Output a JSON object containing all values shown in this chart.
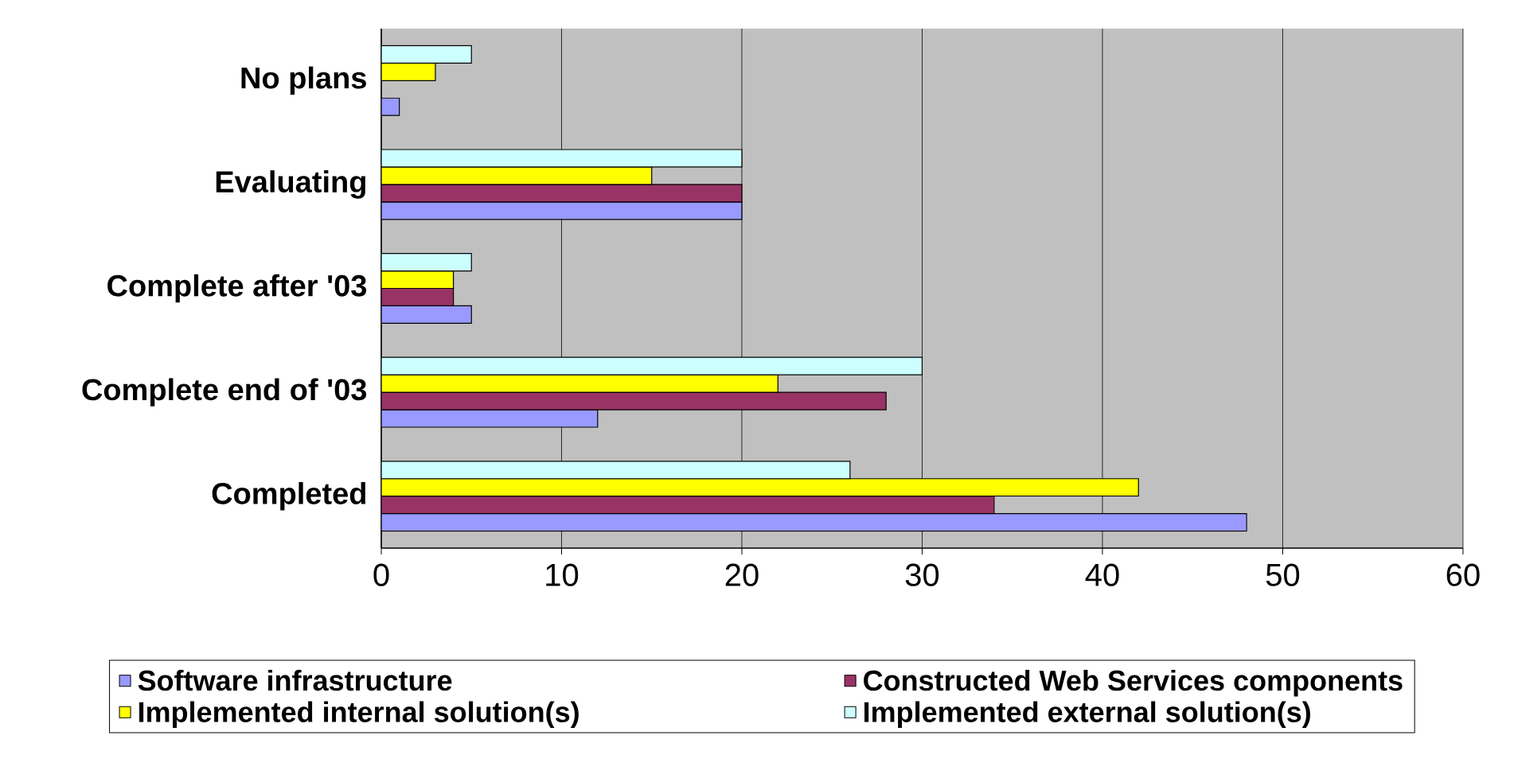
{
  "chart_data": {
    "type": "bar",
    "orientation": "horizontal",
    "categories": [
      "No plans",
      "Evaluating",
      "Complete after '03",
      "Complete end of '03",
      "Completed"
    ],
    "series": [
      {
        "name": "Software infrastructure",
        "color": "#9999ff",
        "values": [
          1,
          20,
          5,
          12,
          48
        ]
      },
      {
        "name": "Constructed Web Services components",
        "color": "#993366",
        "values": [
          null,
          20,
          4,
          28,
          34
        ]
      },
      {
        "name": "Implemented internal solution(s)",
        "color": "#ffff00",
        "values": [
          3,
          15,
          4,
          22,
          42
        ]
      },
      {
        "name": "Implemented external solution(s)",
        "color": "#ccffff",
        "values": [
          5,
          20,
          5,
          30,
          26
        ]
      }
    ],
    "xlim": [
      0,
      60
    ],
    "xticks": [
      0,
      10,
      20,
      30,
      40,
      50,
      60
    ],
    "grid": "x",
    "legend": "bottom"
  }
}
